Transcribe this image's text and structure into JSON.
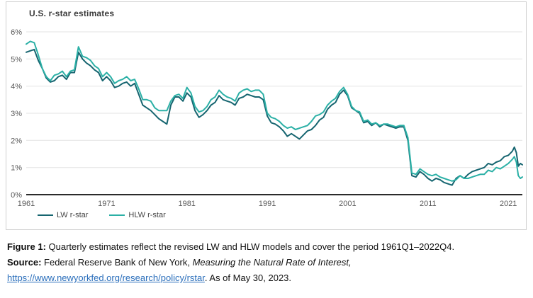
{
  "chart": {
    "title": "U.S. r-star estimates",
    "colors": {
      "lw_line": "#166570",
      "hlw_line": "#2bb0a6",
      "grid": "#e3e3e3",
      "axis": "#2b2b2b",
      "tick_text": "#595959",
      "card_border": "#cfcfcf",
      "link": "#2a6ebb"
    }
  },
  "chart_data": {
    "type": "line",
    "title": "U.S. r-star estimates",
    "xlabel": "",
    "ylabel": "",
    "xlim": [
      1961,
      2022.75
    ],
    "ylim": [
      0,
      6
    ],
    "yticks": [
      0,
      1,
      2,
      3,
      4,
      5,
      6
    ],
    "ytick_suffix": "%",
    "xticks": [
      1961,
      1971,
      1981,
      1991,
      2001,
      2011,
      2021
    ],
    "grid": "horizontal",
    "legend_position": "bottom-left",
    "x": [
      1961,
      1961.5,
      1962,
      1962.5,
      1963,
      1963.5,
      1964,
      1964.5,
      1965,
      1965.5,
      1966,
      1966.5,
      1967,
      1967.5,
      1968,
      1968.5,
      1969,
      1969.5,
      1970,
      1970.5,
      1971,
      1971.5,
      1972,
      1972.5,
      1973,
      1973.5,
      1974,
      1974.5,
      1975,
      1975.5,
      1976,
      1976.5,
      1977,
      1977.5,
      1978,
      1978.5,
      1979,
      1979.5,
      1980,
      1980.5,
      1981,
      1981.5,
      1982,
      1982.5,
      1983,
      1983.5,
      1984,
      1984.5,
      1985,
      1985.5,
      1986,
      1986.5,
      1987,
      1987.5,
      1988,
      1988.5,
      1989,
      1989.5,
      1990,
      1990.5,
      1991,
      1991.5,
      1992,
      1992.5,
      1993,
      1993.5,
      1994,
      1994.5,
      1995,
      1995.5,
      1996,
      1996.5,
      1997,
      1997.5,
      1998,
      1998.5,
      1999,
      1999.5,
      2000,
      2000.5,
      2001,
      2001.5,
      2002,
      2002.5,
      2003,
      2003.5,
      2004,
      2004.5,
      2005,
      2005.5,
      2006,
      2006.5,
      2007,
      2007.5,
      2008,
      2008.5,
      2009,
      2009.5,
      2010,
      2010.5,
      2011,
      2011.5,
      2012,
      2012.5,
      2013,
      2013.5,
      2014,
      2014.5,
      2015,
      2015.5,
      2016,
      2016.5,
      2017,
      2017.5,
      2018,
      2018.5,
      2019,
      2019.5,
      2020,
      2020.5,
      2021,
      2021.5,
      2021.75,
      2022,
      2022.25,
      2022.5,
      2022.75
    ],
    "series": [
      {
        "name": "LW r-star",
        "color": "#166570",
        "values": [
          5.25,
          5.3,
          5.35,
          4.95,
          4.65,
          4.3,
          4.15,
          4.2,
          4.35,
          4.4,
          4.25,
          4.5,
          4.5,
          5.25,
          5.0,
          4.85,
          4.75,
          4.6,
          4.5,
          4.2,
          4.35,
          4.2,
          3.95,
          4.0,
          4.1,
          4.15,
          4.0,
          4.1,
          3.7,
          3.3,
          3.2,
          3.1,
          2.95,
          2.8,
          2.7,
          2.6,
          3.3,
          3.6,
          3.6,
          3.45,
          3.75,
          3.6,
          3.1,
          2.85,
          2.95,
          3.1,
          3.3,
          3.4,
          3.65,
          3.5,
          3.45,
          3.4,
          3.3,
          3.55,
          3.6,
          3.7,
          3.65,
          3.6,
          3.6,
          3.5,
          2.9,
          2.65,
          2.6,
          2.5,
          2.35,
          2.15,
          2.25,
          2.15,
          2.05,
          2.2,
          2.35,
          2.4,
          2.55,
          2.75,
          2.85,
          3.15,
          3.3,
          3.4,
          3.7,
          3.85,
          3.65,
          3.2,
          3.1,
          3.0,
          2.65,
          2.7,
          2.55,
          2.65,
          2.5,
          2.6,
          2.55,
          2.5,
          2.45,
          2.5,
          2.5,
          2.0,
          0.7,
          0.65,
          0.85,
          0.75,
          0.6,
          0.5,
          0.6,
          0.55,
          0.45,
          0.4,
          0.35,
          0.6,
          0.7,
          0.6,
          0.75,
          0.85,
          0.9,
          0.95,
          1.0,
          1.15,
          1.1,
          1.2,
          1.25,
          1.4,
          1.45,
          1.6,
          1.75,
          1.55,
          1.05,
          1.15,
          1.1
        ]
      },
      {
        "name": "HLW r-star",
        "color": "#2bb0a6",
        "values": [
          5.55,
          5.65,
          5.6,
          5.15,
          4.65,
          4.35,
          4.2,
          4.4,
          4.45,
          4.55,
          4.35,
          4.55,
          4.6,
          5.45,
          5.1,
          5.05,
          4.95,
          4.75,
          4.65,
          4.35,
          4.5,
          4.35,
          4.1,
          4.2,
          4.25,
          4.35,
          4.2,
          4.25,
          3.9,
          3.5,
          3.5,
          3.45,
          3.2,
          3.1,
          3.1,
          3.1,
          3.45,
          3.65,
          3.7,
          3.55,
          3.95,
          3.75,
          3.25,
          3.05,
          3.1,
          3.25,
          3.5,
          3.6,
          3.85,
          3.7,
          3.6,
          3.55,
          3.45,
          3.75,
          3.85,
          3.9,
          3.8,
          3.85,
          3.85,
          3.7,
          3.0,
          2.85,
          2.8,
          2.7,
          2.55,
          2.45,
          2.5,
          2.4,
          2.45,
          2.5,
          2.55,
          2.7,
          2.9,
          2.95,
          3.05,
          3.3,
          3.45,
          3.55,
          3.8,
          3.95,
          3.7,
          3.25,
          3.1,
          3.05,
          2.7,
          2.75,
          2.6,
          2.65,
          2.55,
          2.6,
          2.6,
          2.55,
          2.5,
          2.55,
          2.55,
          2.1,
          0.8,
          0.75,
          0.95,
          0.85,
          0.75,
          0.7,
          0.75,
          0.65,
          0.6,
          0.55,
          0.5,
          0.55,
          0.7,
          0.6,
          0.6,
          0.65,
          0.7,
          0.75,
          0.75,
          0.9,
          0.85,
          1.0,
          0.95,
          1.05,
          1.15,
          1.3,
          1.4,
          1.2,
          0.7,
          0.6,
          0.65
        ]
      }
    ]
  },
  "caption": {
    "figure_label": "Figure 1:",
    "figure_text": " Quarterly estimates reflect the revised LW and HLW models and cover the period 1961Q1–2022Q4.",
    "source_label": "Source:",
    "source_text": " Federal Reserve Bank of New York, ",
    "source_italic": "Measuring the Natural Rate of Interest,",
    "link_text": "https://www.newyorkfed.org/research/policy/rstar",
    "link_url": "https://www.newyorkfed.org/research/policy/rstar",
    "after_link": ".  As of May 30, 2023."
  }
}
